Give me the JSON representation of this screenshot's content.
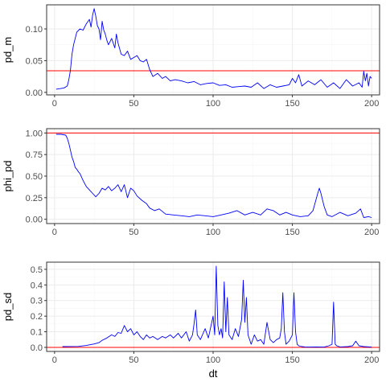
{
  "colors": {
    "line": "#0000ff",
    "ref_line": "#ff0000",
    "panel_border": "#333333",
    "grid_major": "#ebebeb",
    "grid_minor": "#f5f5f5",
    "tick_text": "#4d4d4d",
    "axis_title": "#000000"
  },
  "chart_data": [
    {
      "id": "pd_m",
      "type": "line",
      "title": "",
      "xlabel": "",
      "ylabel": "pd_m",
      "xlim": [
        -5,
        205
      ],
      "ylim": [
        -0.004,
        0.138
      ],
      "x_ticks": [
        0,
        50,
        100,
        150,
        200
      ],
      "x_tick_labels": [
        "0",
        "50",
        "100",
        "150",
        "200"
      ],
      "y_ticks": [
        0.0,
        0.05,
        0.1
      ],
      "y_tick_labels": [
        "0.00",
        "0.05",
        "0.10"
      ],
      "grid": true,
      "hline": 0.034,
      "x": [
        1,
        4,
        6,
        8,
        9,
        10,
        11,
        12,
        13,
        14,
        16,
        18,
        20,
        22,
        23,
        24,
        25,
        26,
        27,
        28,
        29,
        30,
        31,
        32,
        33,
        34,
        36,
        38,
        39,
        40,
        42,
        44,
        46,
        48,
        50,
        52,
        54,
        56,
        58,
        60,
        62,
        65,
        68,
        70,
        73,
        76,
        80,
        84,
        88,
        92,
        96,
        100,
        104,
        108,
        112,
        116,
        120,
        124,
        128,
        132,
        136,
        140,
        144,
        148,
        150,
        152,
        154,
        156,
        160,
        164,
        168,
        172,
        176,
        180,
        184,
        188,
        192,
        194,
        195,
        196,
        197,
        198,
        199,
        200
      ],
      "values": [
        0.005,
        0.006,
        0.007,
        0.01,
        0.02,
        0.035,
        0.06,
        0.075,
        0.085,
        0.095,
        0.1,
        0.098,
        0.108,
        0.115,
        0.103,
        0.122,
        0.132,
        0.12,
        0.105,
        0.1,
        0.083,
        0.112,
        0.098,
        0.092,
        0.082,
        0.075,
        0.085,
        0.07,
        0.092,
        0.078,
        0.06,
        0.058,
        0.065,
        0.052,
        0.055,
        0.058,
        0.05,
        0.048,
        0.052,
        0.036,
        0.025,
        0.03,
        0.022,
        0.025,
        0.018,
        0.02,
        0.018,
        0.015,
        0.017,
        0.012,
        0.014,
        0.015,
        0.011,
        0.012,
        0.008,
        0.009,
        0.01,
        0.008,
        0.015,
        0.006,
        0.012,
        0.008,
        0.01,
        0.012,
        0.022,
        0.015,
        0.028,
        0.01,
        0.018,
        0.012,
        0.02,
        0.008,
        0.015,
        0.006,
        0.02,
        0.01,
        0.015,
        0.008,
        0.033,
        0.018,
        0.03,
        0.01,
        0.025,
        0.022
      ]
    },
    {
      "id": "phi_pd",
      "type": "line",
      "title": "",
      "xlabel": "",
      "ylabel": "phi_pd",
      "xlim": [
        -5,
        205
      ],
      "ylim": [
        -0.05,
        1.05
      ],
      "x_ticks": [
        0,
        50,
        100,
        150,
        200
      ],
      "x_tick_labels": [
        "0",
        "50",
        "100",
        "150",
        "200"
      ],
      "y_ticks": [
        0.0,
        0.25,
        0.5,
        0.75,
        1.0
      ],
      "y_tick_labels": [
        "0.00",
        "0.25",
        "0.50",
        "0.75",
        "1.00"
      ],
      "grid": true,
      "hline": 1.0,
      "x": [
        1,
        4,
        7,
        8,
        9,
        10,
        11,
        12,
        13,
        14,
        15,
        16,
        18,
        20,
        22,
        24,
        26,
        28,
        30,
        32,
        34,
        36,
        38,
        40,
        42,
        44,
        46,
        48,
        50,
        52,
        55,
        58,
        60,
        63,
        66,
        70,
        75,
        80,
        85,
        90,
        95,
        100,
        105,
        110,
        115,
        120,
        125,
        130,
        134,
        138,
        142,
        146,
        150,
        155,
        160,
        163,
        166,
        167,
        168,
        170,
        172,
        175,
        180,
        185,
        190,
        193,
        195,
        198,
        200
      ],
      "values": [
        0.985,
        0.985,
        0.975,
        0.94,
        0.88,
        0.8,
        0.72,
        0.67,
        0.6,
        0.58,
        0.55,
        0.53,
        0.45,
        0.38,
        0.34,
        0.3,
        0.26,
        0.3,
        0.36,
        0.34,
        0.38,
        0.33,
        0.36,
        0.4,
        0.32,
        0.4,
        0.25,
        0.36,
        0.33,
        0.27,
        0.22,
        0.18,
        0.13,
        0.1,
        0.12,
        0.06,
        0.05,
        0.04,
        0.03,
        0.05,
        0.04,
        0.03,
        0.05,
        0.07,
        0.1,
        0.05,
        0.08,
        0.05,
        0.12,
        0.1,
        0.05,
        0.08,
        0.05,
        0.03,
        0.04,
        0.1,
        0.3,
        0.36,
        0.3,
        0.15,
        0.05,
        0.03,
        0.08,
        0.04,
        0.07,
        0.12,
        0.02,
        0.03,
        0.02
      ]
    },
    {
      "id": "pd_sd",
      "type": "line",
      "title": "",
      "xlabel": "dt",
      "ylabel": "pd_sd",
      "xlim": [
        -5,
        205
      ],
      "ylim": [
        -0.026,
        0.546
      ],
      "x_ticks": [
        0,
        50,
        100,
        150,
        200
      ],
      "x_tick_labels": [
        "0",
        "50",
        "100",
        "150",
        "200"
      ],
      "y_ticks": [
        0.0,
        0.1,
        0.2,
        0.3,
        0.4,
        0.5
      ],
      "y_tick_labels": [
        "0.0",
        "0.1",
        "0.2",
        "0.3",
        "0.4",
        "0.5"
      ],
      "grid": true,
      "hline": 0.0,
      "x": [
        5,
        15,
        20,
        25,
        28,
        30,
        33,
        36,
        38,
        40,
        42,
        44,
        46,
        48,
        50,
        52,
        54,
        56,
        58,
        60,
        62,
        65,
        68,
        70,
        73,
        75,
        78,
        80,
        83,
        85,
        87,
        88,
        89,
        90,
        92,
        95,
        97,
        100,
        101,
        102,
        103,
        104,
        105,
        106,
        107,
        108,
        109,
        110,
        112,
        114,
        116,
        118,
        119,
        120,
        121,
        122,
        124,
        126,
        128,
        130,
        132,
        134,
        136,
        138,
        140,
        142,
        143,
        144,
        145,
        146,
        148,
        150,
        151,
        152,
        153,
        154,
        156,
        158,
        160,
        165,
        170,
        173,
        175,
        176,
        177,
        178,
        180,
        185,
        188,
        190,
        192,
        195,
        200
      ],
      "values": [
        0.005,
        0.006,
        0.012,
        0.022,
        0.03,
        0.045,
        0.06,
        0.08,
        0.07,
        0.095,
        0.09,
        0.14,
        0.1,
        0.12,
        0.08,
        0.1,
        0.07,
        0.05,
        0.08,
        0.06,
        0.07,
        0.05,
        0.07,
        0.06,
        0.08,
        0.06,
        0.09,
        0.06,
        0.1,
        0.04,
        0.08,
        0.15,
        0.24,
        0.08,
        0.05,
        0.12,
        0.06,
        0.2,
        0.08,
        0.52,
        0.14,
        0.08,
        0.12,
        0.06,
        0.42,
        0.1,
        0.32,
        0.08,
        0.05,
        0.12,
        0.07,
        0.18,
        0.43,
        0.16,
        0.32,
        0.08,
        0.02,
        0.08,
        0.04,
        0.05,
        0.02,
        0.16,
        0.05,
        0.03,
        0.05,
        0.06,
        0.12,
        0.35,
        0.1,
        0.02,
        0.04,
        0.08,
        0.35,
        0.1,
        0.02,
        0.01,
        0.005,
        0.003,
        0.002,
        0.003,
        0.002,
        0.01,
        0.02,
        0.29,
        0.02,
        0.01,
        0.003,
        0.005,
        0.01,
        0.04,
        0.01,
        0.005,
        0.002
      ]
    }
  ]
}
